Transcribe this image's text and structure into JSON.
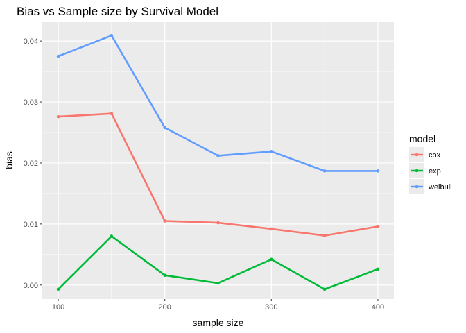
{
  "chart_data": {
    "type": "line",
    "title": "Bias vs Sample size by Survival Model",
    "xlabel": "sample size",
    "ylabel": "bias",
    "x": [
      100,
      150,
      200,
      250,
      300,
      350,
      400
    ],
    "x_ticks": [
      100,
      200,
      300,
      400
    ],
    "x_tick_labels": [
      "100",
      "200",
      "300",
      "400"
    ],
    "xlim": [
      85,
      415
    ],
    "y_ticks": [
      0,
      0.01,
      0.02,
      0.03,
      0.04
    ],
    "y_tick_labels": [
      "0.00",
      "0.01",
      "0.02",
      "0.03",
      "0.04"
    ],
    "ylim": [
      -0.0023,
      0.0432
    ],
    "grid": true,
    "legend": {
      "title": "model",
      "position": "right"
    },
    "series": [
      {
        "name": "cox",
        "color": "#F8766D",
        "values": [
          0.0276,
          0.0281,
          0.0105,
          0.0102,
          0.0092,
          0.0081,
          0.0096
        ]
      },
      {
        "name": "exp",
        "color": "#00BA38",
        "values": [
          -0.0007,
          0.008,
          0.0016,
          0.0003,
          0.0042,
          -0.0007,
          0.0026
        ]
      },
      {
        "name": "weibull",
        "color": "#619CFF",
        "values": [
          0.0375,
          0.0409,
          0.0258,
          0.0212,
          0.0219,
          0.0187,
          0.0187
        ]
      }
    ]
  }
}
